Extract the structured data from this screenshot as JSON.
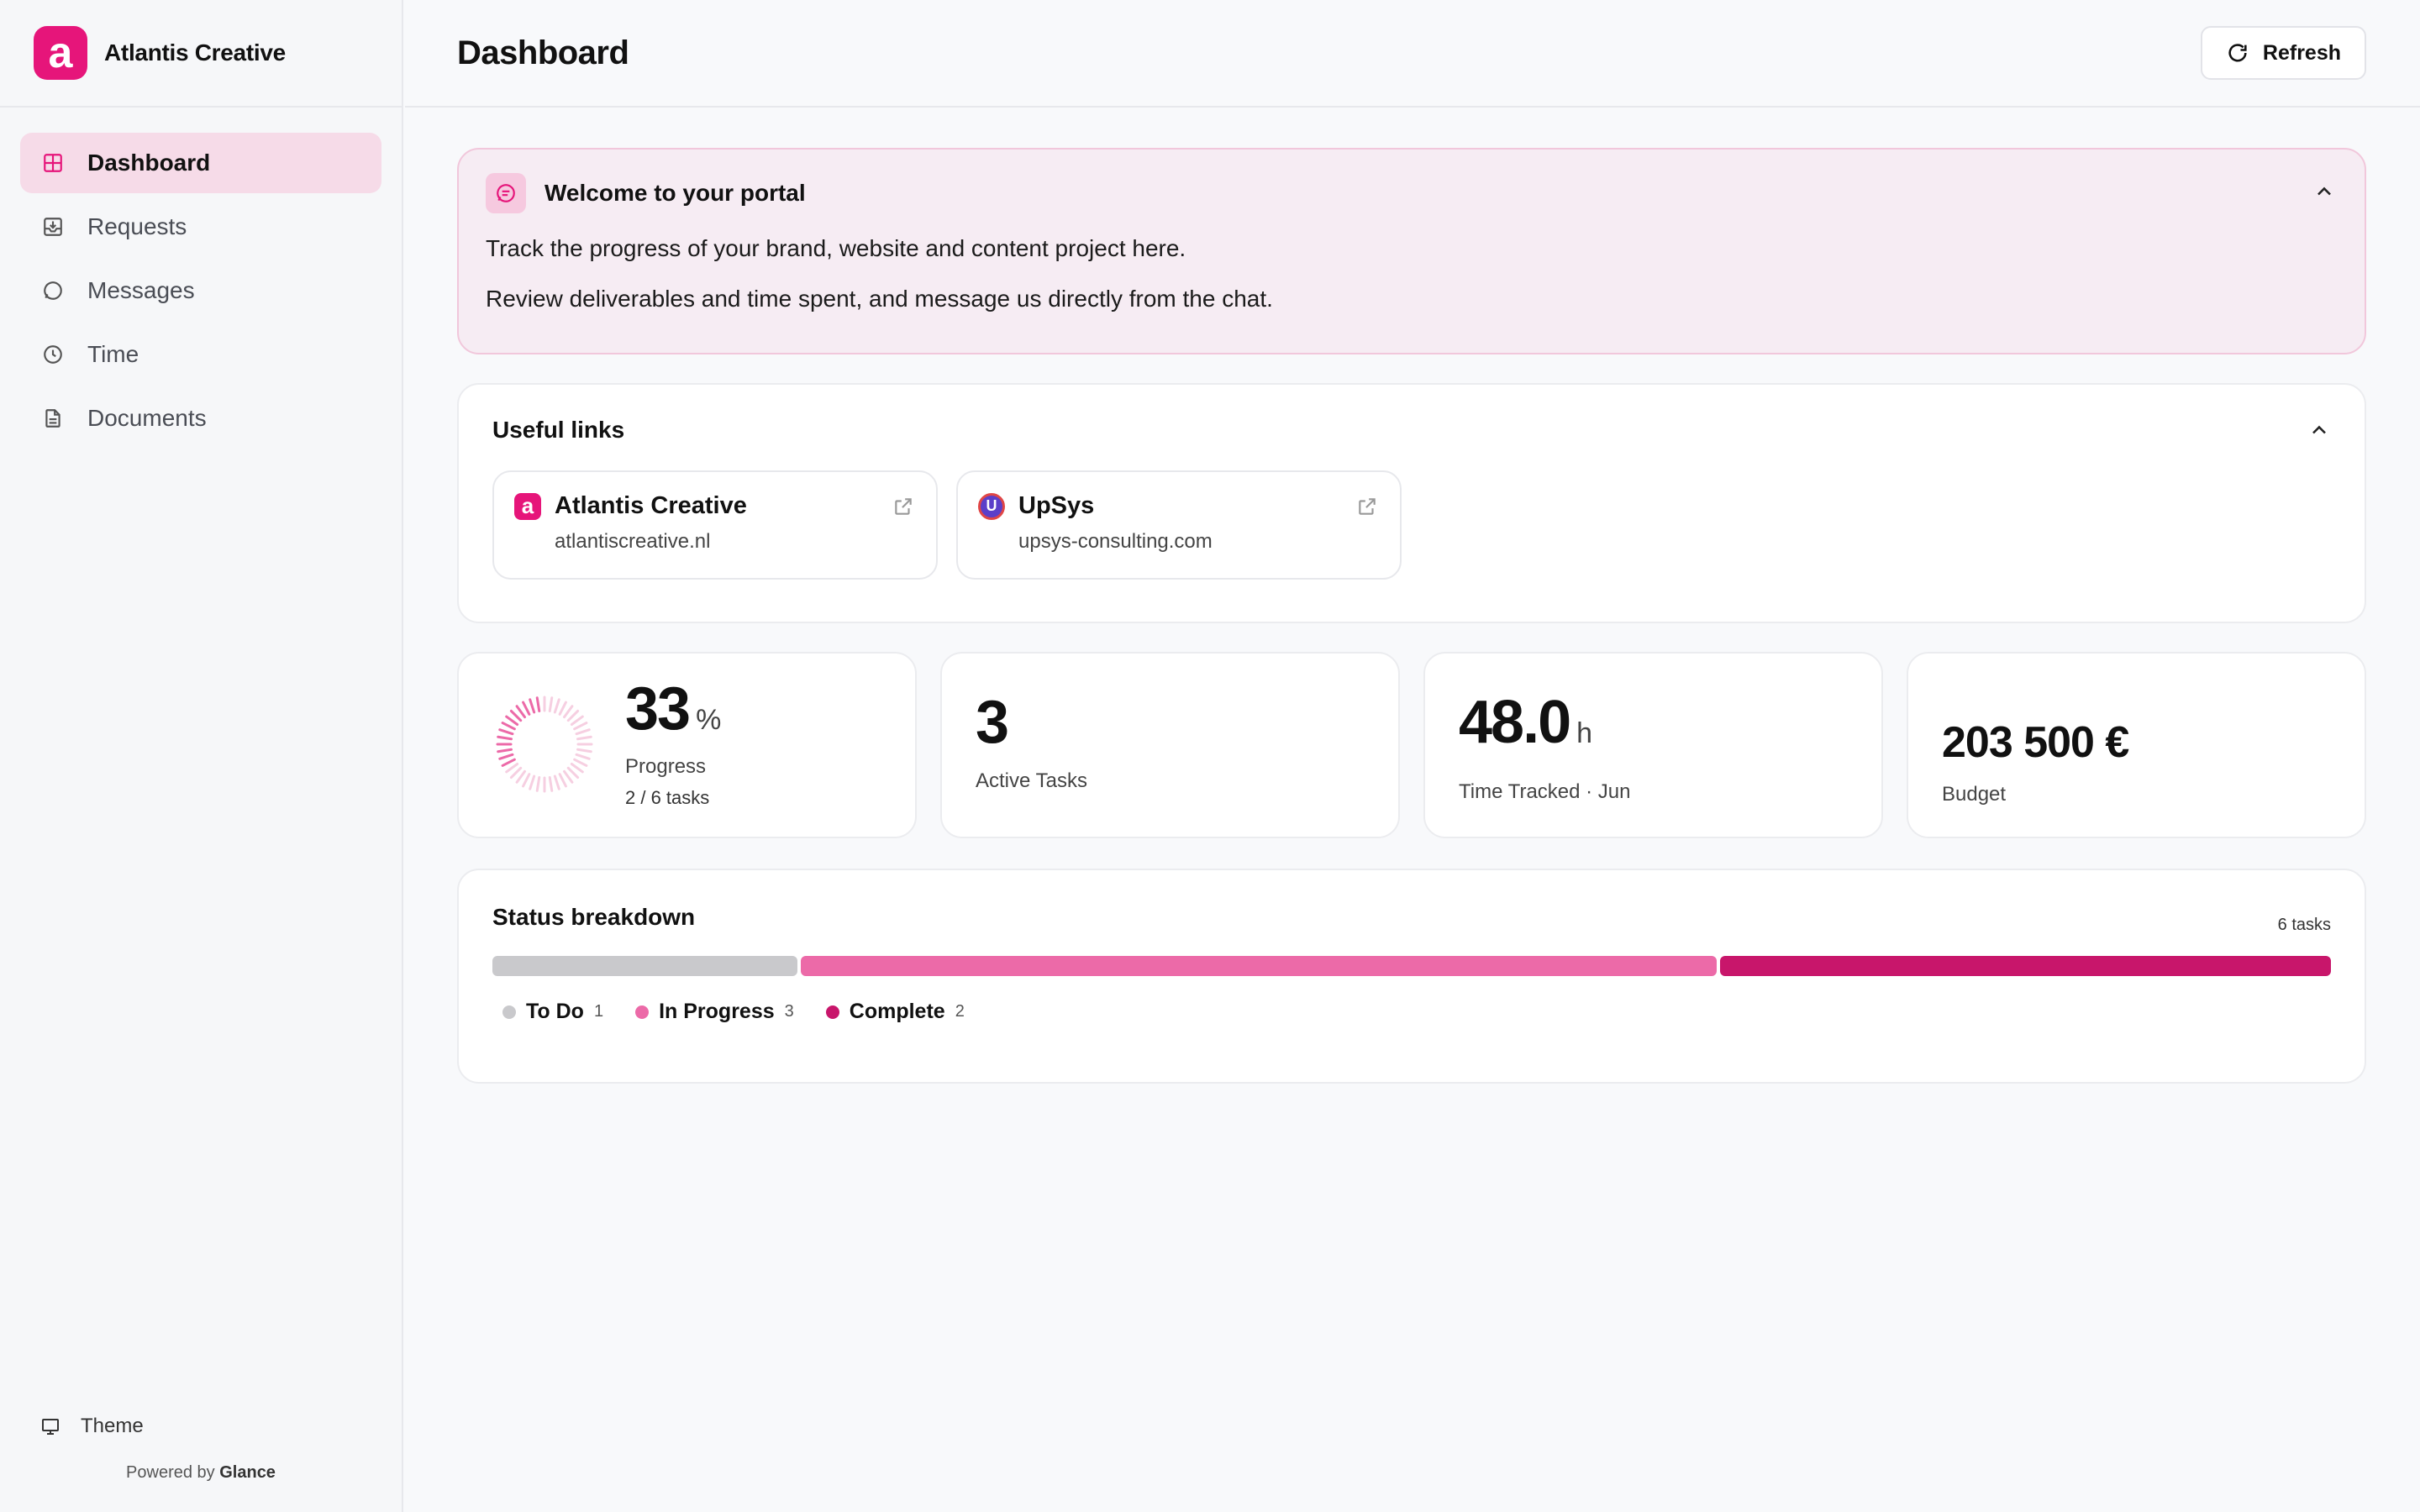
{
  "brand": {
    "name": "Atlantis Creative",
    "logo_letter": "a",
    "accent": "#e6157a"
  },
  "sidebar": {
    "items": [
      {
        "label": "Dashboard",
        "icon": "grid-icon",
        "active": true
      },
      {
        "label": "Requests",
        "icon": "inbox-icon",
        "active": false
      },
      {
        "label": "Messages",
        "icon": "chat-icon",
        "active": false
      },
      {
        "label": "Time",
        "icon": "clock-icon",
        "active": false
      },
      {
        "label": "Documents",
        "icon": "document-icon",
        "active": false
      }
    ],
    "theme_label": "Theme",
    "powered_prefix": "Powered by",
    "powered_brand": "Glance"
  },
  "header": {
    "title": "Dashboard",
    "refresh_label": "Refresh"
  },
  "welcome": {
    "title": "Welcome to your portal",
    "line1": "Track the progress of your brand, website and content project here.",
    "line2": "Review deliverables and time spent, and message us directly from the chat."
  },
  "links": {
    "title": "Useful links",
    "items": [
      {
        "name": "Atlantis Creative",
        "url": "atlantiscreative.nl",
        "logo": "a"
      },
      {
        "name": "UpSys",
        "url": "upsys-consulting.com",
        "logo": "U"
      }
    ]
  },
  "stats": {
    "progress": {
      "value": "33",
      "unit": "%",
      "label": "Progress",
      "sub": "2 / 6 tasks",
      "fraction": 0.33
    },
    "active": {
      "value": "3",
      "label": "Active Tasks"
    },
    "time": {
      "value": "48.0",
      "unit": "h",
      "label": "Time Tracked · Jun"
    },
    "budget": {
      "value": "203 500 €",
      "label": "Budget"
    }
  },
  "status": {
    "title": "Status breakdown",
    "count_label": "6 tasks",
    "segments": [
      {
        "label": "To Do",
        "count": 1,
        "color": "#c9c9cc"
      },
      {
        "label": "In Progress",
        "count": 3,
        "color": "#ec6aa8"
      },
      {
        "label": "Complete",
        "count": 2,
        "color": "#c8166b"
      }
    ]
  }
}
